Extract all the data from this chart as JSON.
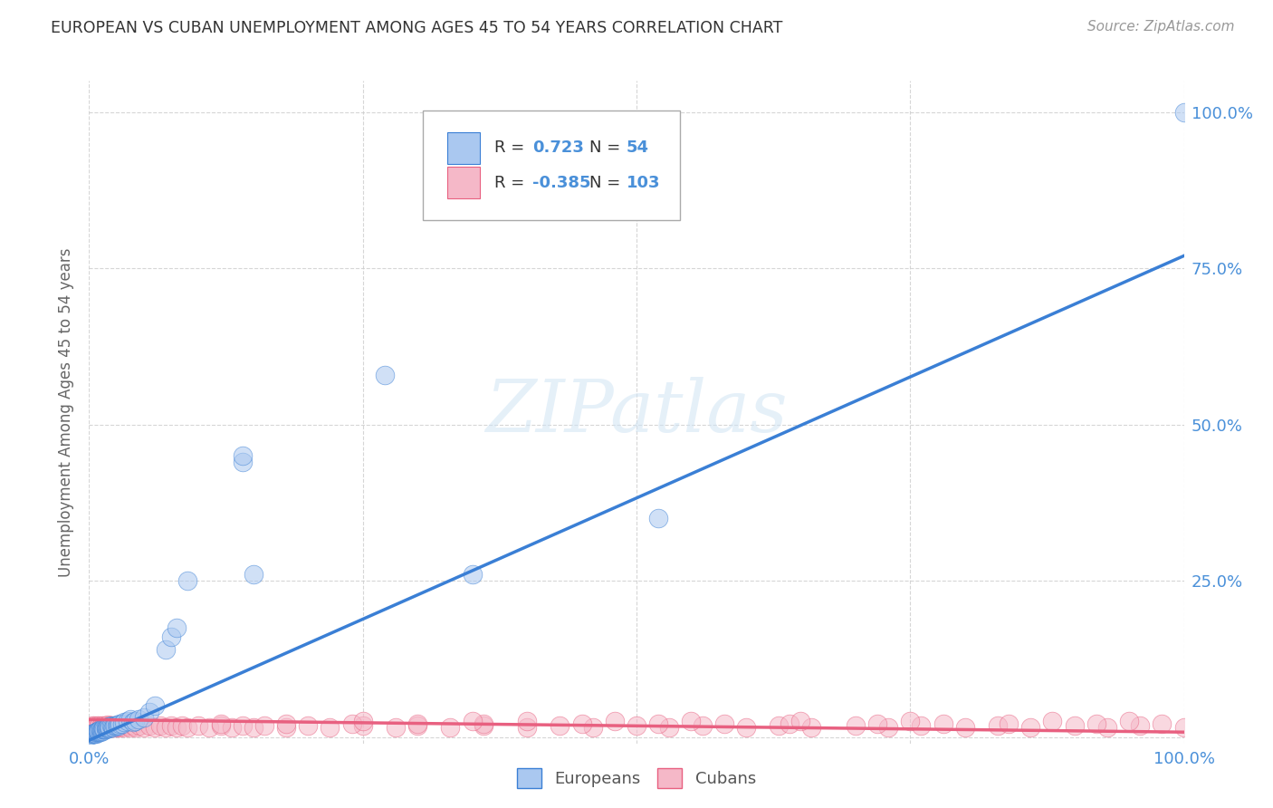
{
  "title": "EUROPEAN VS CUBAN UNEMPLOYMENT AMONG AGES 45 TO 54 YEARS CORRELATION CHART",
  "source": "Source: ZipAtlas.com",
  "ylabel": "Unemployment Among Ages 45 to 54 years",
  "xlim": [
    0,
    1.0
  ],
  "ylim": [
    -0.01,
    1.05
  ],
  "y_ticks": [
    0.0,
    0.25,
    0.5,
    0.75,
    1.0
  ],
  "y_tick_labels": [
    "",
    "25.0%",
    "50.0%",
    "75.0%",
    "100.0%"
  ],
  "european_color": "#aac8f0",
  "cuban_color": "#f5b8c8",
  "line_european_color": "#3a7fd5",
  "line_cuban_color": "#e86080",
  "background_color": "#ffffff",
  "grid_color": "#cccccc",
  "watermark_text": "ZIPatlas",
  "eu_line_x0": 0.0,
  "eu_line_y0": -0.005,
  "eu_line_x1": 1.0,
  "eu_line_y1": 0.77,
  "cu_line_x0": 0.0,
  "cu_line_y0": 0.028,
  "cu_line_x1": 1.0,
  "cu_line_y1": 0.008,
  "european_x": [
    0.002,
    0.003,
    0.004,
    0.004,
    0.005,
    0.005,
    0.006,
    0.006,
    0.007,
    0.007,
    0.008,
    0.008,
    0.009,
    0.009,
    0.01,
    0.01,
    0.01,
    0.011,
    0.012,
    0.012,
    0.013,
    0.013,
    0.014,
    0.015,
    0.015,
    0.016,
    0.016,
    0.017,
    0.018,
    0.018,
    0.019,
    0.02,
    0.021,
    0.022,
    0.023,
    0.024,
    0.025,
    0.026,
    0.027,
    0.028,
    0.03,
    0.032,
    0.035,
    0.038,
    0.04,
    0.042,
    0.045,
    0.05,
    0.055,
    0.06,
    0.07,
    0.075,
    0.08,
    0.09
  ],
  "european_y": [
    0.004,
    0.005,
    0.005,
    0.006,
    0.005,
    0.007,
    0.006,
    0.008,
    0.007,
    0.009,
    0.008,
    0.01,
    0.009,
    0.01,
    0.008,
    0.01,
    0.012,
    0.011,
    0.01,
    0.013,
    0.012,
    0.014,
    0.013,
    0.012,
    0.015,
    0.014,
    0.016,
    0.015,
    0.014,
    0.017,
    0.016,
    0.018,
    0.017,
    0.016,
    0.018,
    0.019,
    0.018,
    0.02,
    0.019,
    0.021,
    0.022,
    0.024,
    0.026,
    0.028,
    0.024,
    0.026,
    0.028,
    0.032,
    0.04,
    0.05,
    0.14,
    0.16,
    0.175,
    0.25
  ],
  "eu_outliers_x": [
    0.14,
    0.14,
    0.15,
    0.27,
    0.35,
    0.52,
    1.0
  ],
  "eu_outliers_y": [
    0.44,
    0.45,
    0.26,
    0.58,
    0.26,
    0.35,
    1.0
  ],
  "cuban_x": [
    0.002,
    0.003,
    0.004,
    0.005,
    0.006,
    0.007,
    0.008,
    0.009,
    0.01,
    0.011,
    0.012,
    0.013,
    0.014,
    0.015,
    0.016,
    0.017,
    0.018,
    0.019,
    0.02,
    0.021,
    0.022,
    0.023,
    0.024,
    0.025,
    0.026,
    0.027,
    0.028,
    0.03,
    0.032,
    0.035,
    0.038,
    0.04,
    0.043,
    0.046,
    0.05,
    0.055,
    0.06,
    0.065,
    0.07,
    0.075,
    0.08,
    0.085,
    0.09,
    0.1,
    0.11,
    0.12,
    0.13,
    0.14,
    0.15,
    0.16,
    0.18,
    0.2,
    0.22,
    0.25,
    0.28,
    0.3,
    0.33,
    0.36,
    0.4,
    0.43,
    0.46,
    0.5,
    0.53,
    0.56,
    0.6,
    0.63,
    0.66,
    0.7,
    0.73,
    0.76,
    0.8,
    0.83,
    0.86,
    0.9,
    0.93,
    0.96,
    1.0,
    0.12,
    0.18,
    0.24,
    0.3,
    0.36,
    0.45,
    0.52,
    0.58,
    0.64,
    0.72,
    0.78,
    0.84,
    0.92,
    0.98,
    0.25,
    0.35,
    0.48,
    0.55,
    0.65,
    0.75,
    0.88,
    0.95,
    0.4
  ],
  "cuban_y": [
    0.016,
    0.018,
    0.016,
    0.018,
    0.016,
    0.018,
    0.015,
    0.018,
    0.016,
    0.018,
    0.016,
    0.018,
    0.016,
    0.018,
    0.016,
    0.02,
    0.016,
    0.018,
    0.016,
    0.018,
    0.016,
    0.018,
    0.016,
    0.018,
    0.016,
    0.018,
    0.016,
    0.018,
    0.016,
    0.018,
    0.016,
    0.018,
    0.016,
    0.018,
    0.016,
    0.018,
    0.016,
    0.018,
    0.016,
    0.018,
    0.016,
    0.018,
    0.016,
    0.018,
    0.016,
    0.018,
    0.016,
    0.018,
    0.016,
    0.018,
    0.016,
    0.018,
    0.016,
    0.018,
    0.016,
    0.018,
    0.016,
    0.018,
    0.016,
    0.018,
    0.016,
    0.018,
    0.016,
    0.018,
    0.016,
    0.018,
    0.016,
    0.018,
    0.016,
    0.018,
    0.016,
    0.018,
    0.016,
    0.018,
    0.016,
    0.018,
    0.016,
    0.022,
    0.022,
    0.022,
    0.022,
    0.022,
    0.022,
    0.022,
    0.022,
    0.022,
    0.022,
    0.022,
    0.022,
    0.022,
    0.022,
    0.025,
    0.025,
    0.025,
    0.025,
    0.025,
    0.025,
    0.025,
    0.025,
    0.025
  ]
}
